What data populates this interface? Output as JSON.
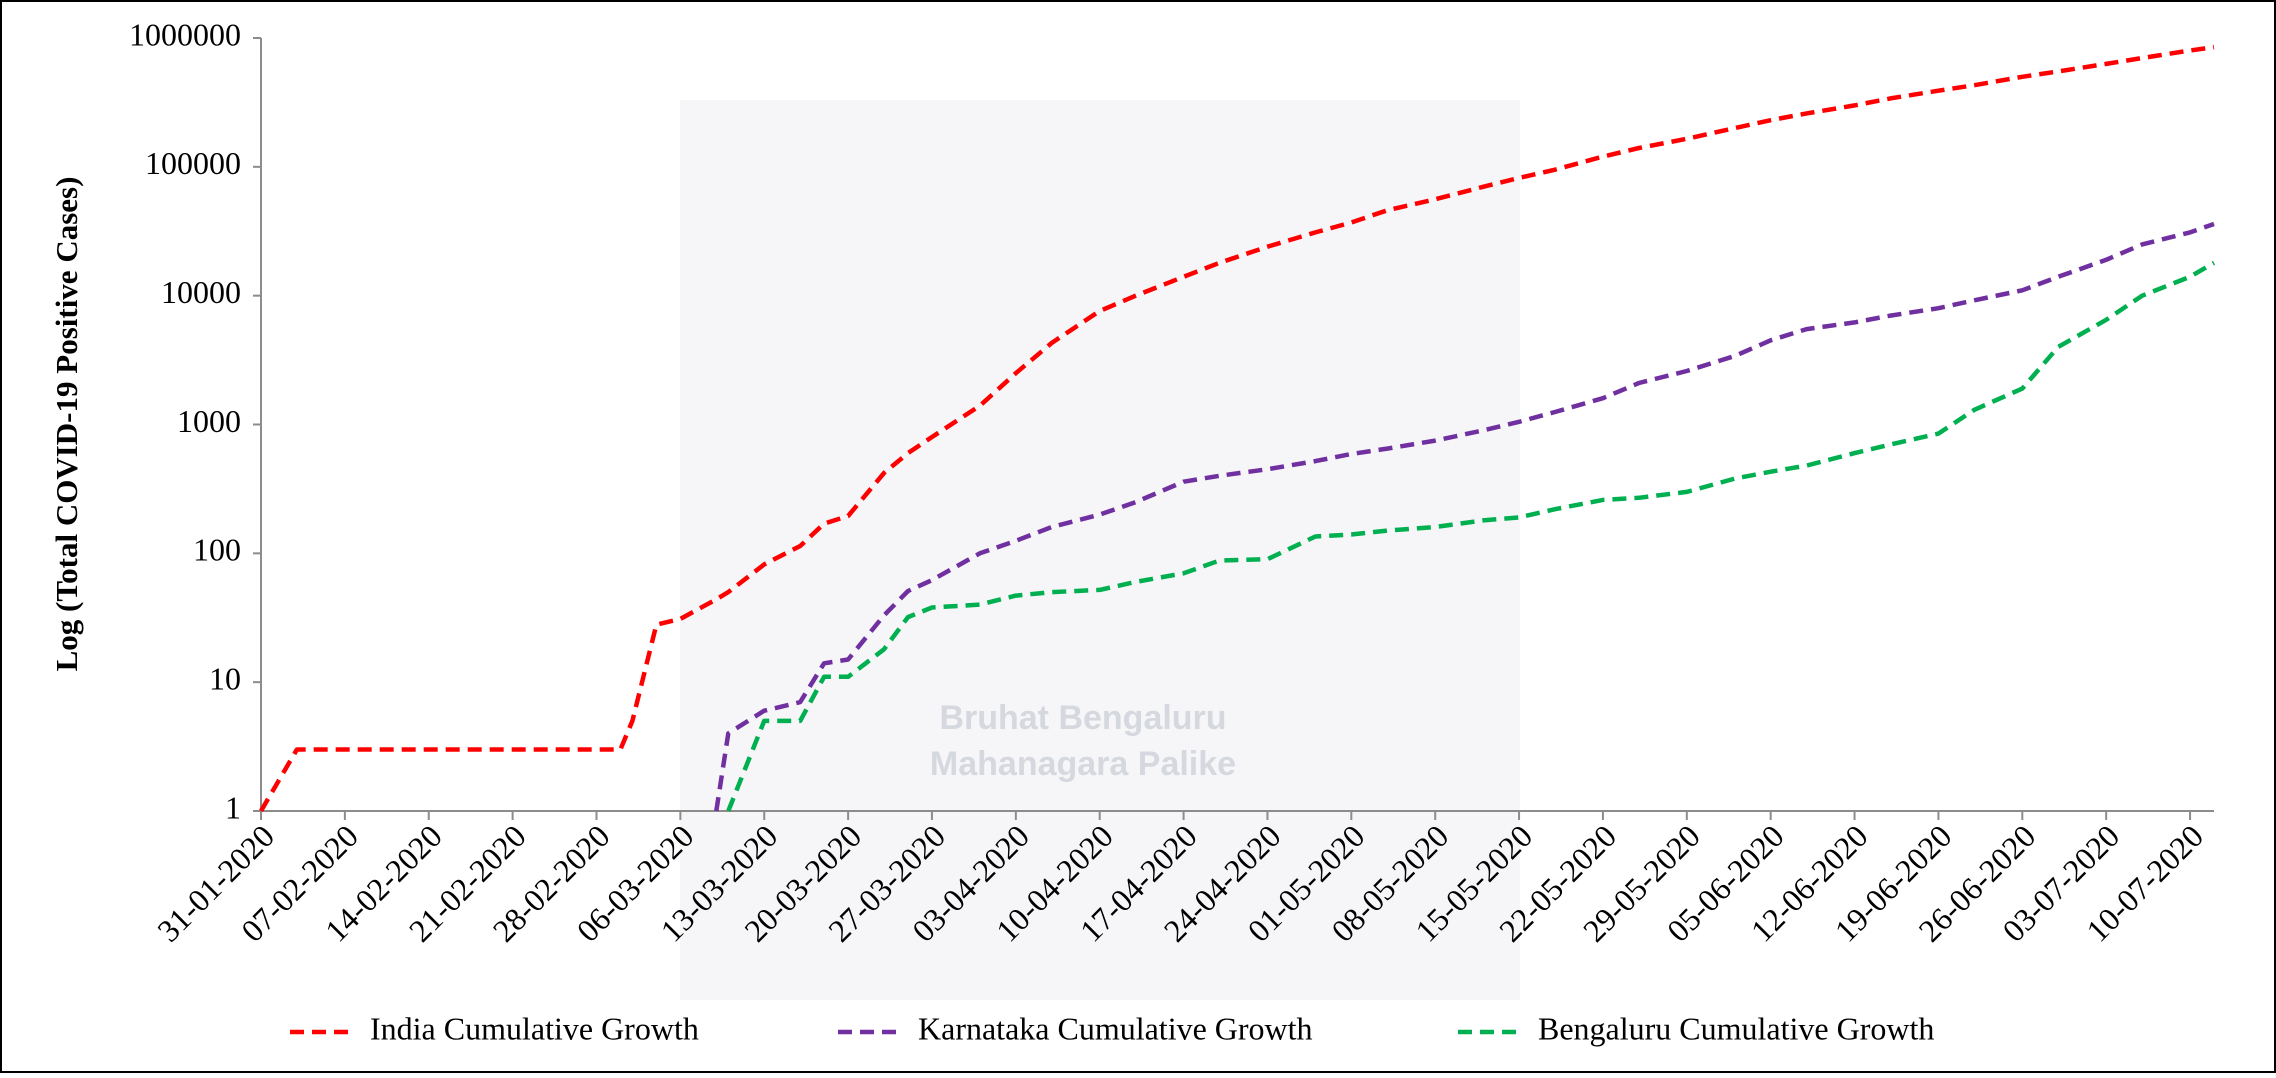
{
  "chart_data": {
    "type": "line",
    "y_label": "Log (Total COVID-19 Positive Cases)",
    "watermark": [
      "Bruhat Bengaluru",
      "Mahanagara Palike"
    ],
    "yscale": "log",
    "ylim": [
      1,
      1000000
    ],
    "yticks": [
      1,
      10,
      100,
      1000,
      10000,
      100000,
      1000000
    ],
    "xlim": [
      "31-01-2020",
      "12-07-2020"
    ],
    "xticks": [
      "31-01-2020",
      "07-02-2020",
      "14-02-2020",
      "21-02-2020",
      "28-02-2020",
      "06-03-2020",
      "13-03-2020",
      "20-03-2020",
      "27-03-2020",
      "03-04-2020",
      "10-04-2020",
      "17-04-2020",
      "24-04-2020",
      "01-05-2020",
      "08-05-2020",
      "15-05-2020",
      "22-05-2020",
      "29-05-2020",
      "05-06-2020",
      "12-06-2020",
      "19-06-2020",
      "26-06-2020",
      "03-07-2020",
      "10-07-2020"
    ],
    "grid": false,
    "legend_position": "bottom",
    "x": [
      "31-01-2020",
      "03-02-2020",
      "01-03-2020",
      "02-03-2020",
      "04-03-2020",
      "06-03-2020",
      "09-03-2020",
      "10-03-2020",
      "13-03-2020",
      "16-03-2020",
      "18-03-2020",
      "20-03-2020",
      "23-03-2020",
      "25-03-2020",
      "27-03-2020",
      "31-03-2020",
      "03-04-2020",
      "06-04-2020",
      "10-04-2020",
      "13-04-2020",
      "17-04-2020",
      "20-04-2020",
      "24-04-2020",
      "28-04-2020",
      "01-05-2020",
      "04-05-2020",
      "08-05-2020",
      "12-05-2020",
      "15-05-2020",
      "18-05-2020",
      "22-05-2020",
      "25-05-2020",
      "29-05-2020",
      "02-06-2020",
      "05-06-2020",
      "08-06-2020",
      "12-06-2020",
      "15-06-2020",
      "19-06-2020",
      "22-06-2020",
      "26-06-2020",
      "29-06-2020",
      "03-07-2020",
      "06-07-2020",
      "10-07-2020",
      "12-07-2020"
    ],
    "series": [
      {
        "name": "India Cumulative Growth",
        "color": "#ff0000",
        "values": [
          1,
          3,
          3,
          5,
          28,
          31,
          44,
          50,
          82,
          114,
          170,
          195,
          420,
          600,
          800,
          1400,
          2500,
          4300,
          7600,
          10000,
          14000,
          18000,
          24000,
          31000,
          37000,
          46000,
          56000,
          70000,
          82000,
          95000,
          120000,
          140000,
          165000,
          200000,
          230000,
          260000,
          300000,
          340000,
          390000,
          430000,
          500000,
          550000,
          630000,
          700000,
          800000,
          850000
        ]
      },
      {
        "name": "Karnataka Cumulative Growth",
        "color": "#7030a0",
        "values": [
          null,
          null,
          null,
          null,
          null,
          null,
          1,
          4,
          6,
          7,
          14,
          15,
          33,
          51,
          62,
          100,
          125,
          160,
          200,
          250,
          360,
          400,
          450,
          520,
          590,
          650,
          750,
          900,
          1050,
          1250,
          1600,
          2100,
          2600,
          3400,
          4500,
          5500,
          6200,
          7000,
          8000,
          9200,
          11000,
          14000,
          19000,
          25000,
          31000,
          36000
        ]
      },
      {
        "name": "Bengaluru Cumulative Growth",
        "color": "#00b050",
        "values": [
          null,
          null,
          null,
          null,
          null,
          null,
          null,
          1,
          5,
          5,
          11,
          11,
          18,
          32,
          38,
          40,
          47,
          50,
          52,
          60,
          70,
          88,
          90,
          135,
          140,
          150,
          160,
          180,
          190,
          220,
          260,
          270,
          300,
          380,
          430,
          480,
          600,
          700,
          850,
          1300,
          1900,
          4000,
          6500,
          10000,
          14000,
          18000
        ]
      }
    ]
  }
}
